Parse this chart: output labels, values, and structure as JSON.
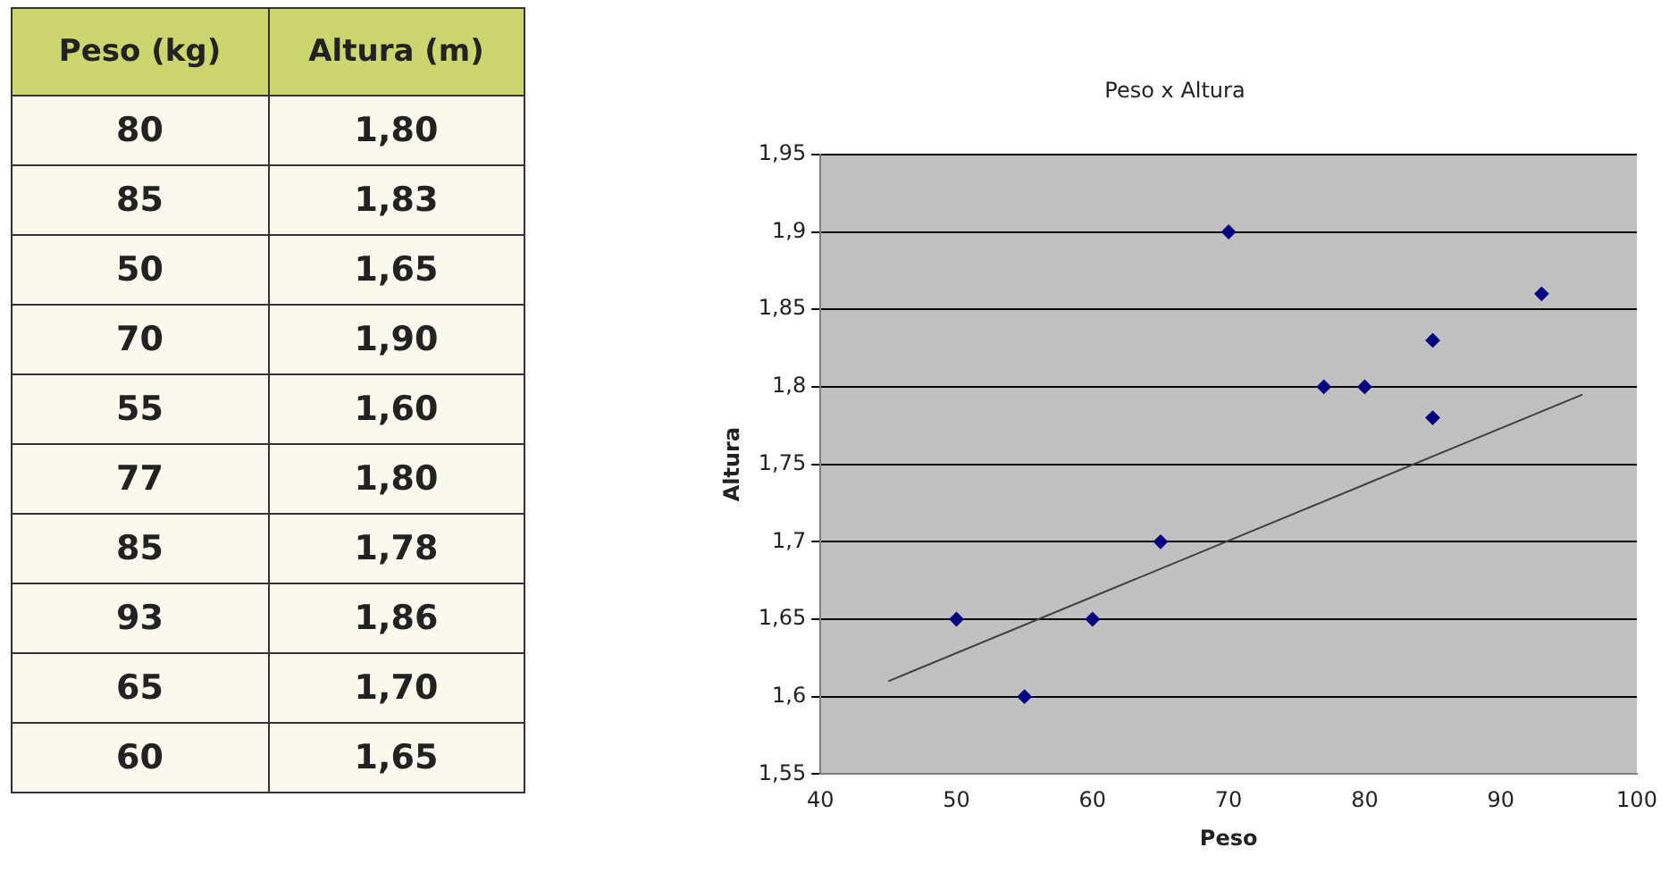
{
  "chart_data": [
    {
      "type": "other",
      "annotations": [
        "Peso (kg)",
        "Altura (m)",
        "80",
        "1,80",
        "85",
        "1,83",
        "50",
        "1,65",
        "70",
        "1,90",
        "55",
        "1,60",
        "77",
        "1,80",
        "85",
        "1,78",
        "93",
        "1,86",
        "65",
        "1,70",
        "60",
        "1,65"
      ]
    },
    {
      "type": "scatter",
      "title": "Peso x Altura",
      "xlabel": "Peso",
      "ylabel": "Altura",
      "series": [
        {
          "color": "#000080",
          "marker": "diamond",
          "x": [
            80,
            85,
            50,
            70,
            55,
            77,
            85,
            93,
            65,
            60
          ],
          "values": [
            1.8,
            1.83,
            1.65,
            1.9,
            1.6,
            1.8,
            1.78,
            1.86,
            1.7,
            1.65
          ]
        },
        {
          "type": "line",
          "marker": "none",
          "color": "#404040",
          "x": [
            45,
            96
          ],
          "values": [
            1.61,
            1.795
          ]
        }
      ],
      "xlim": [
        40,
        100
      ],
      "xticks": [
        40,
        50,
        60,
        70,
        80,
        90,
        100
      ],
      "ylim": [
        1.55,
        1.95
      ],
      "yticks": [
        {
          "value": 1.55,
          "label": "1,55"
        },
        {
          "value": 1.6,
          "label": "1,6"
        },
        {
          "value": 1.65,
          "label": "1,65"
        },
        {
          "value": 1.7,
          "label": "1,7"
        },
        {
          "value": 1.75,
          "label": "1,75"
        },
        {
          "value": 1.8,
          "label": "1,8"
        },
        {
          "value": 1.85,
          "label": "1,85"
        },
        {
          "value": 1.9,
          "label": "1,9"
        },
        {
          "value": 1.95,
          "label": "1,95"
        }
      ],
      "grid": "y",
      "legend": false
    }
  ]
}
